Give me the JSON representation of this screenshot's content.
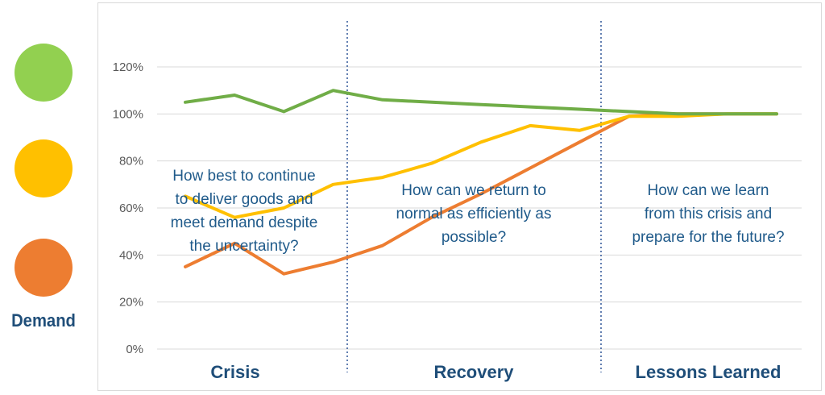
{
  "legend": {
    "label": "Demand",
    "dots": [
      {
        "name": "green",
        "color": "#92d050"
      },
      {
        "name": "yellow",
        "color": "#ffc000"
      },
      {
        "name": "orange",
        "color": "#ed7d31"
      }
    ]
  },
  "chart_data": {
    "type": "line",
    "x": [
      1,
      2,
      3,
      4,
      5,
      6,
      7,
      8,
      9,
      10,
      11,
      12,
      13
    ],
    "ylim": [
      0,
      120
    ],
    "y_ticks": [
      "0%",
      "20%",
      "40%",
      "60%",
      "80%",
      "100%",
      "120%"
    ],
    "grid": true,
    "series": [
      {
        "color": "#70ad47",
        "values": [
          105,
          108,
          101,
          110,
          106,
          105,
          104,
          103,
          102,
          101,
          100,
          100,
          100
        ]
      },
      {
        "color": "#ffc000",
        "values": [
          65,
          56,
          60,
          70,
          73,
          79,
          88,
          95,
          93,
          99,
          99,
          100,
          100
        ]
      },
      {
        "color": "#ed7d31",
        "values": [
          35,
          45,
          32,
          37,
          44,
          56,
          66,
          77,
          88,
          99,
          100,
          100,
          100
        ]
      }
    ],
    "phases": [
      {
        "label": "Crisis",
        "question": [
          "How best to continue",
          "to deliver goods and",
          "meet demand despite",
          "the uncertainty?"
        ]
      },
      {
        "label": "Recovery",
        "question": [
          "How can we return to",
          "normal as efficiently as",
          "possible?"
        ]
      },
      {
        "label": "Lessons Learned",
        "question": [
          "How can we learn",
          "from this crisis and",
          "prepare for the future?"
        ]
      }
    ]
  }
}
